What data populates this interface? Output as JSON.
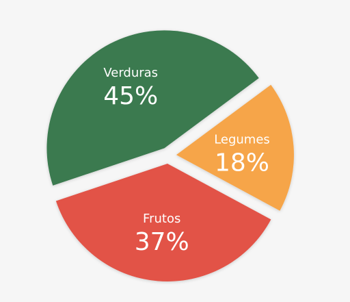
{
  "chart_data": {
    "type": "pie",
    "title": "",
    "slices": [
      {
        "label": "Verduras",
        "value": 45,
        "display": "45%",
        "color": "#3a7a4f"
      },
      {
        "label": "Legumes",
        "value": 18,
        "display": "18%",
        "color": "#f6a549"
      },
      {
        "label": "Frutos",
        "value": 37,
        "display": "37%",
        "color": "#e25346"
      }
    ],
    "legend": "none",
    "labels_inside": true
  }
}
